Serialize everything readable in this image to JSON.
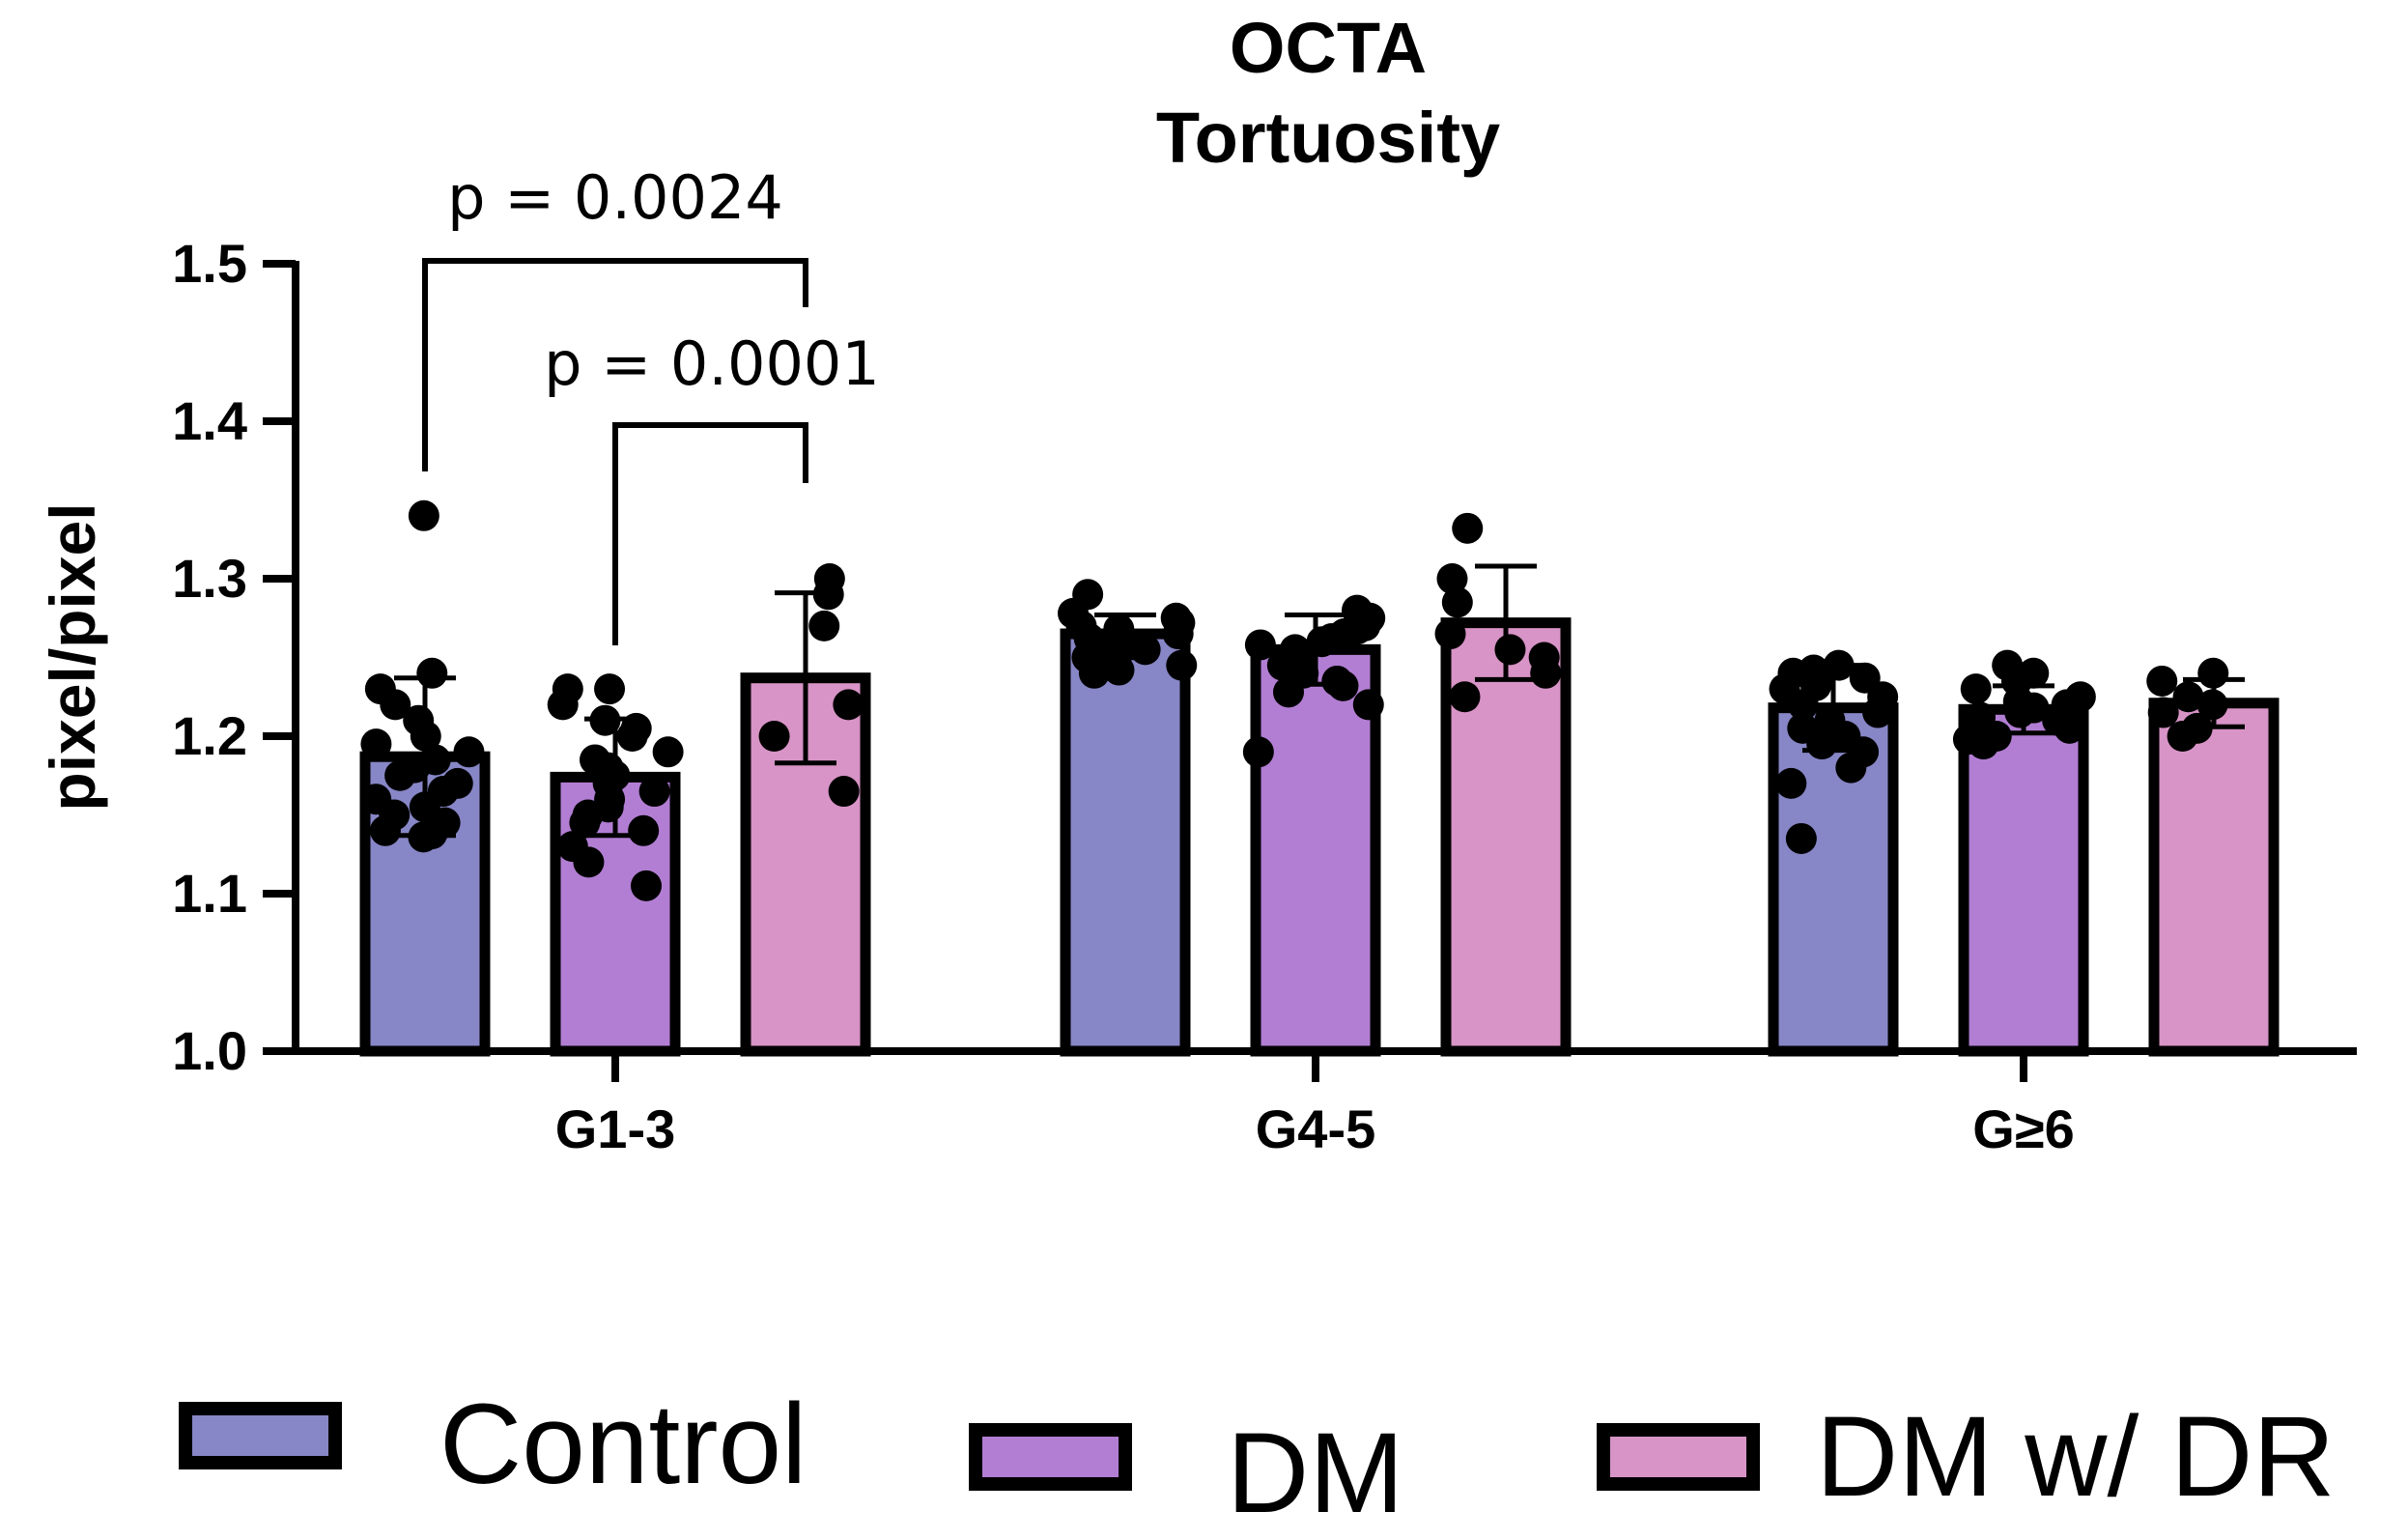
{
  "chart_data": {
    "type": "bar",
    "title": [
      "OCTA",
      "Tortuosity"
    ],
    "ylabel": "pixel/pixel",
    "xlabel": "",
    "ylim": [
      1.0,
      1.5
    ],
    "yticks": [
      "1.0",
      "1.1",
      "1.2",
      "1.3",
      "1.4",
      "1.5"
    ],
    "categories": [
      "G1-3",
      "G4-5",
      "G≥6"
    ],
    "series": [
      {
        "name": "Control",
        "color": "#8786c6",
        "values": [
          1.187,
          1.265,
          1.218
        ],
        "sd": [
          0.05,
          0.012,
          0.027
        ],
        "points": [
          [
            1.34,
            1.24,
            1.23,
            1.22,
            1.21,
            1.2,
            1.195,
            1.19,
            1.185,
            1.18,
            1.175,
            1.17,
            1.165,
            1.16,
            1.155,
            1.15,
            1.145,
            1.14,
            1.138,
            1.136
          ],
          [
            1.29,
            1.278,
            1.275,
            1.272,
            1.27,
            1.268,
            1.265,
            1.262,
            1.26,
            1.258,
            1.255,
            1.252,
            1.25,
            1.245,
            1.242,
            1.24
          ],
          [
            1.245,
            1.242,
            1.24,
            1.237,
            1.235,
            1.232,
            1.23,
            1.225,
            1.22,
            1.215,
            1.21,
            1.205,
            1.2,
            1.195,
            1.19,
            1.18,
            1.17,
            1.135
          ]
        ]
      },
      {
        "name": "DM",
        "color": "#b27ed3",
        "values": [
          1.174,
          1.255,
          1.217
        ],
        "sd": [
          0.037,
          0.022,
          0.015
        ],
        "points": [
          [
            1.23,
            1.23,
            1.22,
            1.21,
            1.205,
            1.2,
            1.19,
            1.185,
            1.18,
            1.175,
            1.17,
            1.165,
            1.16,
            1.155,
            1.15,
            1.145,
            1.14,
            1.13,
            1.12,
            1.105
          ],
          [
            1.28,
            1.275,
            1.27,
            1.268,
            1.265,
            1.262,
            1.26,
            1.258,
            1.255,
            1.25,
            1.245,
            1.24,
            1.235,
            1.232,
            1.228,
            1.22,
            1.19
          ],
          [
            1.245,
            1.24,
            1.235,
            1.23,
            1.225,
            1.222,
            1.22,
            1.218,
            1.215,
            1.212,
            1.21,
            1.205,
            1.2,
            1.198,
            1.195
          ]
        ]
      },
      {
        "name": "DM w/ DR",
        "color": "#d894c6",
        "values": [
          1.237,
          1.272,
          1.221
        ],
        "sd": [
          0.054,
          0.036,
          0.015
        ],
        "points": [
          [
            1.3,
            1.29,
            1.27,
            1.22,
            1.2,
            1.165
          ],
          [
            1.332,
            1.3,
            1.285,
            1.265,
            1.255,
            1.25,
            1.24,
            1.225
          ],
          [
            1.24,
            1.235,
            1.225,
            1.22,
            1.215,
            1.205,
            1.2
          ]
        ]
      }
    ],
    "annotations": [
      {
        "text": "p = 0.0024",
        "from": [
          0,
          0
        ],
        "to": [
          0,
          2
        ]
      },
      {
        "text": "p = 0.0001",
        "from": [
          0,
          1
        ],
        "to": [
          0,
          2
        ]
      }
    ],
    "legend_position": "bottom"
  }
}
